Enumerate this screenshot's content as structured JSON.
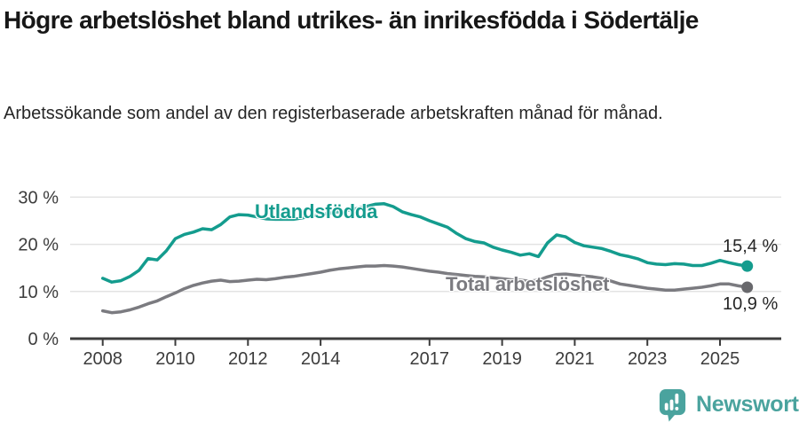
{
  "header": {
    "title": "Högre arbetslöshet bland utrikes- än inrikesfödda i Södertälje",
    "subtitle": "Arbetssökande som andel av den registerbaserade arbetskraften månad för månad."
  },
  "footer": {
    "brand": "Newsworthy",
    "brand_color": "#4aa39e"
  },
  "colors": {
    "accent_teal": "#149c8e",
    "line_gray": "#7b7b80",
    "axis": "#3c3c3c",
    "gridline": "#e3e3e3"
  },
  "chart_data": {
    "type": "line",
    "title": "Högre arbetslöshet bland utrikes- än inrikesfödda i Södertälje",
    "xlabel": "",
    "ylabel": "Arbetssökande som andel av den registerbaserade arbetskraften, %",
    "unit": "%",
    "grid": "horizontal",
    "legend_position": "inline-labels",
    "xlim": [
      2008,
      2025.75
    ],
    "ylim": [
      0,
      30
    ],
    "x_ticks": [
      2008,
      2010,
      2012,
      2014,
      2017,
      2019,
      2021,
      2023,
      2025
    ],
    "x_tick_labels": [
      "2008",
      "2010",
      "2012",
      "2014",
      "2017",
      "2019",
      "2021",
      "2023",
      "2025"
    ],
    "y_ticks": [
      0,
      10,
      20,
      30
    ],
    "y_tick_labels": [
      "0 %",
      "10 %",
      "20 %",
      "30 %"
    ],
    "series": [
      {
        "name": "Utlandsfödda",
        "color": "#149c8e",
        "dot_color": "#149c8e",
        "end_label": "15,4 %",
        "end_value": 15.4,
        "points": [
          [
            2008.0,
            12.8
          ],
          [
            2008.25,
            12.0
          ],
          [
            2008.5,
            12.3
          ],
          [
            2008.75,
            13.2
          ],
          [
            2009.0,
            14.5
          ],
          [
            2009.25,
            17.0
          ],
          [
            2009.5,
            16.7
          ],
          [
            2009.75,
            18.6
          ],
          [
            2010.0,
            21.2
          ],
          [
            2010.25,
            22.1
          ],
          [
            2010.5,
            22.6
          ],
          [
            2010.75,
            23.3
          ],
          [
            2011.0,
            23.1
          ],
          [
            2011.25,
            24.2
          ],
          [
            2011.5,
            25.8
          ],
          [
            2011.75,
            26.3
          ],
          [
            2012.0,
            26.2
          ],
          [
            2012.25,
            25.8
          ],
          [
            2012.5,
            25.4
          ],
          [
            2012.75,
            25.3
          ],
          [
            2013.0,
            25.3
          ],
          [
            2013.25,
            25.3
          ],
          [
            2013.5,
            25.6
          ],
          [
            2013.75,
            26.0
          ],
          [
            2014.0,
            26.3
          ],
          [
            2014.25,
            26.6
          ],
          [
            2014.5,
            26.9
          ],
          [
            2014.75,
            27.2
          ],
          [
            2015.0,
            27.6
          ],
          [
            2015.25,
            28.0
          ],
          [
            2015.5,
            28.5
          ],
          [
            2015.75,
            28.6
          ],
          [
            2016.0,
            28.0
          ],
          [
            2016.25,
            26.9
          ],
          [
            2016.5,
            26.3
          ],
          [
            2016.75,
            25.8
          ],
          [
            2017.0,
            25.0
          ],
          [
            2017.25,
            24.3
          ],
          [
            2017.5,
            23.6
          ],
          [
            2017.75,
            22.3
          ],
          [
            2018.0,
            21.2
          ],
          [
            2018.25,
            20.6
          ],
          [
            2018.5,
            20.3
          ],
          [
            2018.75,
            19.4
          ],
          [
            2019.0,
            18.8
          ],
          [
            2019.25,
            18.3
          ],
          [
            2019.5,
            17.7
          ],
          [
            2019.75,
            18.0
          ],
          [
            2020.0,
            17.4
          ],
          [
            2020.25,
            20.3
          ],
          [
            2020.5,
            22.0
          ],
          [
            2020.75,
            21.6
          ],
          [
            2021.0,
            20.4
          ],
          [
            2021.25,
            19.7
          ],
          [
            2021.5,
            19.4
          ],
          [
            2021.75,
            19.1
          ],
          [
            2022.0,
            18.5
          ],
          [
            2022.25,
            17.8
          ],
          [
            2022.5,
            17.4
          ],
          [
            2022.75,
            16.9
          ],
          [
            2023.0,
            16.1
          ],
          [
            2023.25,
            15.8
          ],
          [
            2023.5,
            15.7
          ],
          [
            2023.75,
            15.9
          ],
          [
            2024.0,
            15.8
          ],
          [
            2024.25,
            15.5
          ],
          [
            2024.5,
            15.5
          ],
          [
            2024.75,
            16.0
          ],
          [
            2025.0,
            16.6
          ],
          [
            2025.25,
            16.1
          ],
          [
            2025.5,
            15.7
          ],
          [
            2025.75,
            15.4
          ]
        ]
      },
      {
        "name": "Total arbetslöshet",
        "color": "#7b7b80",
        "dot_color": "#68686c",
        "end_label": "10,9 %",
        "end_value": 10.9,
        "points": [
          [
            2008.0,
            5.9
          ],
          [
            2008.25,
            5.5
          ],
          [
            2008.5,
            5.7
          ],
          [
            2008.75,
            6.1
          ],
          [
            2009.0,
            6.7
          ],
          [
            2009.25,
            7.4
          ],
          [
            2009.5,
            8.0
          ],
          [
            2009.75,
            8.9
          ],
          [
            2010.0,
            9.7
          ],
          [
            2010.25,
            10.6
          ],
          [
            2010.5,
            11.3
          ],
          [
            2010.75,
            11.8
          ],
          [
            2011.0,
            12.2
          ],
          [
            2011.25,
            12.4
          ],
          [
            2011.5,
            12.1
          ],
          [
            2011.75,
            12.2
          ],
          [
            2012.0,
            12.4
          ],
          [
            2012.25,
            12.6
          ],
          [
            2012.5,
            12.5
          ],
          [
            2012.75,
            12.7
          ],
          [
            2013.0,
            13.0
          ],
          [
            2013.25,
            13.2
          ],
          [
            2013.5,
            13.5
          ],
          [
            2013.75,
            13.8
          ],
          [
            2014.0,
            14.1
          ],
          [
            2014.25,
            14.5
          ],
          [
            2014.5,
            14.8
          ],
          [
            2014.75,
            15.0
          ],
          [
            2015.0,
            15.2
          ],
          [
            2015.25,
            15.4
          ],
          [
            2015.5,
            15.4
          ],
          [
            2015.75,
            15.5
          ],
          [
            2016.0,
            15.4
          ],
          [
            2016.25,
            15.2
          ],
          [
            2016.5,
            14.9
          ],
          [
            2016.75,
            14.6
          ],
          [
            2017.0,
            14.3
          ],
          [
            2017.25,
            14.1
          ],
          [
            2017.5,
            13.8
          ],
          [
            2017.75,
            13.6
          ],
          [
            2018.0,
            13.4
          ],
          [
            2018.25,
            13.2
          ],
          [
            2018.5,
            13.1
          ],
          [
            2018.75,
            12.9
          ],
          [
            2019.0,
            12.7
          ],
          [
            2019.25,
            12.5
          ],
          [
            2019.5,
            12.4
          ],
          [
            2019.75,
            12.2
          ],
          [
            2020.0,
            12.4
          ],
          [
            2020.25,
            13.1
          ],
          [
            2020.5,
            13.6
          ],
          [
            2020.75,
            13.7
          ],
          [
            2021.0,
            13.5
          ],
          [
            2021.25,
            13.3
          ],
          [
            2021.5,
            13.1
          ],
          [
            2021.75,
            12.8
          ],
          [
            2022.0,
            12.2
          ],
          [
            2022.25,
            11.6
          ],
          [
            2022.5,
            11.3
          ],
          [
            2022.75,
            11.0
          ],
          [
            2023.0,
            10.7
          ],
          [
            2023.25,
            10.5
          ],
          [
            2023.5,
            10.3
          ],
          [
            2023.75,
            10.3
          ],
          [
            2024.0,
            10.5
          ],
          [
            2024.25,
            10.7
          ],
          [
            2024.5,
            10.9
          ],
          [
            2024.75,
            11.2
          ],
          [
            2025.0,
            11.6
          ],
          [
            2025.25,
            11.6
          ],
          [
            2025.5,
            11.2
          ],
          [
            2025.75,
            10.9
          ]
        ]
      }
    ]
  }
}
